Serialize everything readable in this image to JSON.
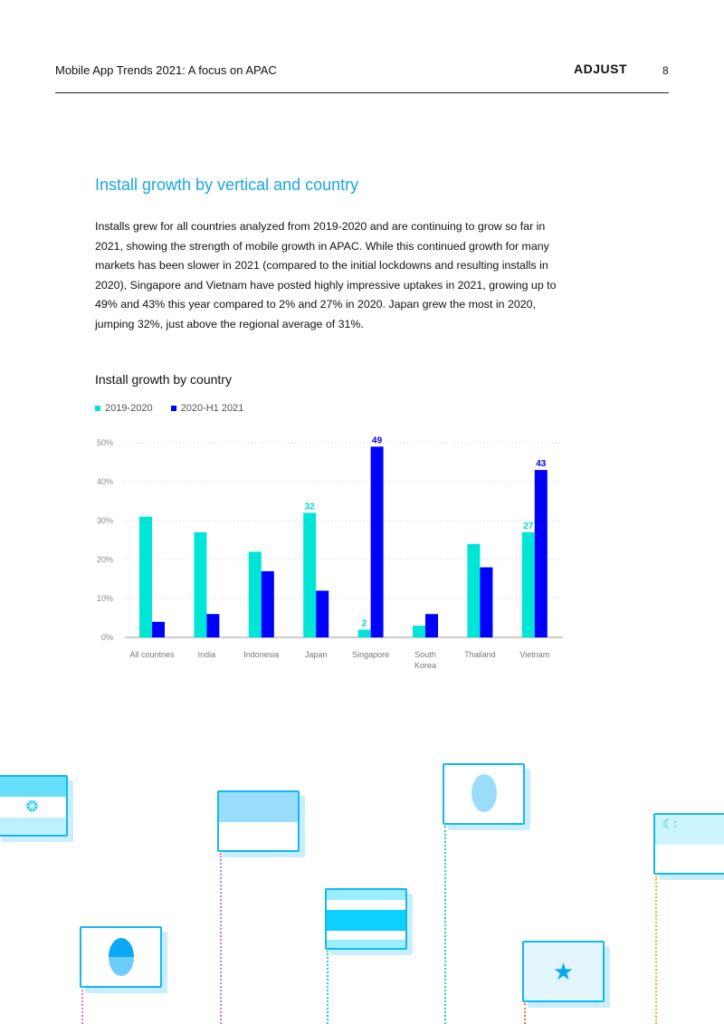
{
  "header": {
    "title": "Mobile App Trends 2021: A focus on APAC",
    "logo": "ADJUST",
    "page_number": "8"
  },
  "section": {
    "heading": "Install growth by vertical and country",
    "body": "Installs grew for all countries analyzed from 2019-2020 and are continuing to grow so far in 2021, showing the strength of mobile growth in APAC. While this continued growth for many markets has been slower in 2021 (compared to the initial lockdowns and resulting installs in 2020), Singapore and Vietnam have posted highly impressive uptakes in 2021, growing up to 49% and 43% this year compared to 2% and 27% in 2020. Japan grew the most in 2020, jumping 32%, just above the regional average of 31%."
  },
  "chart_data": {
    "type": "bar",
    "title": "Install growth by country",
    "xlabel": "",
    "ylabel": "",
    "ylim": [
      0,
      50
    ],
    "yticks": [
      "0%",
      "10%",
      "20%",
      "30%",
      "40%",
      "50%"
    ],
    "grid": true,
    "legend": "top-left",
    "categories": [
      "All countries",
      "India",
      "Indonesia",
      "Japan",
      "Singapore",
      "South Korea",
      "Thailand",
      "Vietnam"
    ],
    "series": [
      {
        "name": "2019-2020",
        "color": "#00e5d6",
        "values": [
          31,
          27,
          22,
          32,
          2,
          3,
          24,
          27
        ]
      },
      {
        "name": "2020-H1 2021",
        "color": "#0000ff",
        "values": [
          4,
          6,
          17,
          12,
          49,
          6,
          18,
          43
        ]
      }
    ],
    "data_labels": [
      {
        "series": 0,
        "category": 3,
        "text": "32"
      },
      {
        "series": 0,
        "category": 4,
        "text": "2"
      },
      {
        "series": 1,
        "category": 4,
        "text": "49"
      },
      {
        "series": 0,
        "category": 7,
        "text": "27"
      },
      {
        "series": 1,
        "category": 7,
        "text": "43"
      }
    ]
  }
}
